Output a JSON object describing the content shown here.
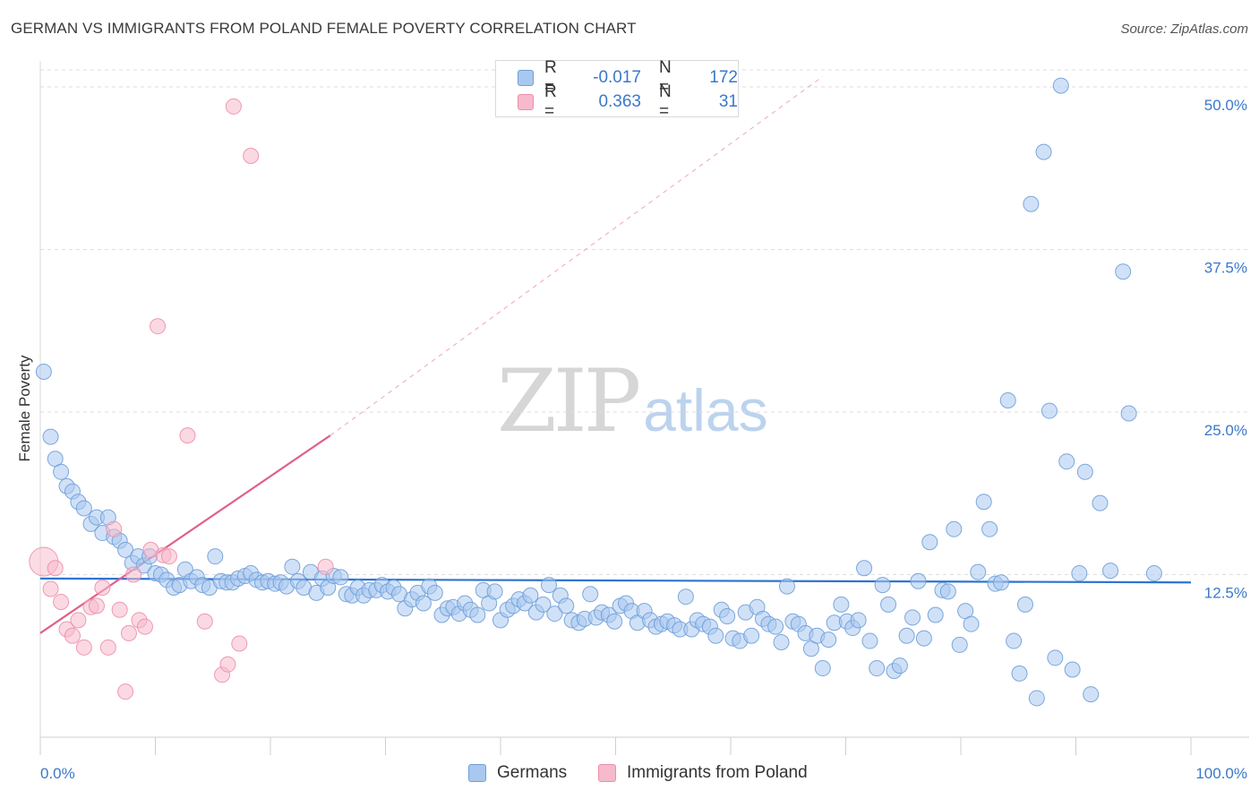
{
  "title": "GERMAN VS IMMIGRANTS FROM POLAND FEMALE POVERTY CORRELATION CHART",
  "source": "Source: ZipAtlas.com",
  "watermark": {
    "part1": "ZIP",
    "part2": "atlas"
  },
  "colors": {
    "blue_fill": "#a9c8f0",
    "blue_stroke": "#6f9fd8",
    "blue_line": "#2f74d0",
    "pink_fill": "#f7b9cc",
    "pink_stroke": "#ec8fab",
    "pink_line": "#e0608a",
    "grid": "#dedede",
    "axis_text": "#3a78c9"
  },
  "legend": [
    {
      "r_label": "R =",
      "r_value": "-0.017",
      "n_label": "N =",
      "n_value": "172"
    },
    {
      "r_label": "R =",
      "r_value": "0.363",
      "n_label": "N =",
      "n_value": "31"
    }
  ],
  "bottom_legend": [
    "Germans",
    "Immigrants from Poland"
  ],
  "chart_data": {
    "type": "scatter",
    "title": "GERMAN VS IMMIGRANTS FROM POLAND FEMALE POVERTY CORRELATION CHART",
    "xlabel": "",
    "ylabel": "Female Poverty",
    "xlim": [
      0,
      100
    ],
    "ylim": [
      0,
      52
    ],
    "x_tick_labels": [
      "0.0%",
      "100.0%"
    ],
    "y_ticks": [
      12.5,
      25.0,
      37.5,
      50.0
    ],
    "y_tick_labels": [
      "12.5%",
      "25.0%",
      "37.5%",
      "50.0%"
    ],
    "grid": true,
    "series": [
      {
        "name": "Germans",
        "color": "#a9c8f0",
        "trend": {
          "x": [
            0,
            100
          ],
          "y": [
            12.2,
            11.9
          ]
        },
        "points": [
          [
            0.3,
            28.1
          ],
          [
            0.9,
            23.1
          ],
          [
            1.3,
            21.4
          ],
          [
            1.8,
            20.4
          ],
          [
            2.3,
            19.3
          ],
          [
            2.8,
            18.9
          ],
          [
            3.3,
            18.1
          ],
          [
            3.8,
            17.6
          ],
          [
            4.4,
            16.4
          ],
          [
            4.9,
            16.9
          ],
          [
            5.4,
            15.7
          ],
          [
            5.9,
            16.9
          ],
          [
            6.4,
            15.4
          ],
          [
            6.9,
            15.1
          ],
          [
            7.4,
            14.4
          ],
          [
            8.0,
            13.4
          ],
          [
            8.5,
            13.9
          ],
          [
            9.0,
            13.2
          ],
          [
            9.5,
            13.9
          ],
          [
            10.0,
            12.6
          ],
          [
            10.5,
            12.5
          ],
          [
            11.0,
            12.1
          ],
          [
            11.6,
            11.5
          ],
          [
            12.1,
            11.7
          ],
          [
            12.6,
            12.9
          ],
          [
            13.1,
            12.0
          ],
          [
            13.6,
            12.3
          ],
          [
            14.1,
            11.7
          ],
          [
            14.7,
            11.5
          ],
          [
            15.2,
            13.9
          ],
          [
            15.7,
            12.0
          ],
          [
            16.2,
            11.9
          ],
          [
            16.7,
            11.9
          ],
          [
            17.2,
            12.2
          ],
          [
            17.8,
            12.4
          ],
          [
            18.3,
            12.6
          ],
          [
            18.8,
            12.1
          ],
          [
            19.3,
            11.9
          ],
          [
            19.8,
            12.0
          ],
          [
            20.4,
            11.8
          ],
          [
            20.9,
            11.9
          ],
          [
            21.4,
            11.6
          ],
          [
            21.9,
            13.1
          ],
          [
            22.4,
            12.0
          ],
          [
            22.9,
            11.5
          ],
          [
            23.5,
            12.7
          ],
          [
            24.0,
            11.1
          ],
          [
            24.5,
            12.2
          ],
          [
            25.0,
            11.5
          ],
          [
            25.5,
            12.4
          ],
          [
            26.1,
            12.3
          ],
          [
            26.6,
            11.0
          ],
          [
            27.1,
            10.9
          ],
          [
            27.6,
            11.5
          ],
          [
            28.1,
            10.9
          ],
          [
            28.6,
            11.3
          ],
          [
            29.2,
            11.3
          ],
          [
            29.7,
            11.7
          ],
          [
            30.2,
            11.2
          ],
          [
            30.7,
            11.5
          ],
          [
            31.2,
            11.0
          ],
          [
            31.7,
            9.9
          ],
          [
            32.3,
            10.6
          ],
          [
            32.8,
            11.1
          ],
          [
            33.3,
            10.3
          ],
          [
            33.8,
            11.6
          ],
          [
            34.3,
            11.1
          ],
          [
            34.9,
            9.4
          ],
          [
            35.4,
            9.9
          ],
          [
            35.9,
            10.0
          ],
          [
            36.4,
            9.5
          ],
          [
            36.9,
            10.3
          ],
          [
            37.4,
            9.8
          ],
          [
            38.0,
            9.4
          ],
          [
            38.5,
            11.3
          ],
          [
            39.0,
            10.3
          ],
          [
            39.5,
            11.2
          ],
          [
            40.0,
            9.0
          ],
          [
            40.6,
            9.8
          ],
          [
            41.1,
            10.1
          ],
          [
            41.6,
            10.6
          ],
          [
            42.1,
            10.3
          ],
          [
            42.6,
            10.9
          ],
          [
            43.1,
            9.6
          ],
          [
            43.7,
            10.2
          ],
          [
            44.2,
            11.7
          ],
          [
            44.7,
            9.5
          ],
          [
            45.2,
            10.9
          ],
          [
            45.7,
            10.1
          ],
          [
            46.2,
            9.0
          ],
          [
            46.8,
            8.8
          ],
          [
            47.3,
            9.1
          ],
          [
            47.8,
            11.0
          ],
          [
            48.3,
            9.2
          ],
          [
            48.8,
            9.6
          ],
          [
            49.4,
            9.4
          ],
          [
            49.9,
            8.9
          ],
          [
            50.4,
            10.1
          ],
          [
            50.9,
            10.3
          ],
          [
            51.4,
            9.7
          ],
          [
            51.9,
            8.8
          ],
          [
            52.5,
            9.7
          ],
          [
            53.0,
            9.0
          ],
          [
            53.5,
            8.5
          ],
          [
            54.0,
            8.7
          ],
          [
            54.5,
            8.9
          ],
          [
            55.1,
            8.6
          ],
          [
            55.6,
            8.3
          ],
          [
            56.1,
            10.8
          ],
          [
            56.6,
            8.3
          ],
          [
            57.1,
            9.0
          ],
          [
            57.6,
            8.7
          ],
          [
            58.2,
            8.5
          ],
          [
            58.7,
            7.8
          ],
          [
            59.2,
            9.8
          ],
          [
            59.7,
            9.3
          ],
          [
            60.2,
            7.6
          ],
          [
            60.8,
            7.4
          ],
          [
            61.3,
            9.6
          ],
          [
            61.8,
            7.8
          ],
          [
            62.3,
            10.0
          ],
          [
            62.8,
            9.1
          ],
          [
            63.3,
            8.7
          ],
          [
            63.9,
            8.5
          ],
          [
            64.4,
            7.3
          ],
          [
            64.9,
            11.6
          ],
          [
            65.4,
            8.9
          ],
          [
            65.9,
            8.7
          ],
          [
            66.5,
            8.0
          ],
          [
            67.0,
            6.8
          ],
          [
            67.5,
            7.8
          ],
          [
            68.0,
            5.3
          ],
          [
            68.5,
            7.5
          ],
          [
            69.0,
            8.8
          ],
          [
            69.6,
            10.2
          ],
          [
            70.1,
            8.9
          ],
          [
            70.6,
            8.4
          ],
          [
            71.1,
            9.0
          ],
          [
            71.6,
            13.0
          ],
          [
            72.1,
            7.4
          ],
          [
            72.7,
            5.3
          ],
          [
            73.2,
            11.7
          ],
          [
            73.7,
            10.2
          ],
          [
            74.2,
            5.1
          ],
          [
            74.7,
            5.5
          ],
          [
            75.3,
            7.8
          ],
          [
            75.8,
            9.2
          ],
          [
            76.3,
            12.0
          ],
          [
            76.8,
            7.6
          ],
          [
            77.3,
            15.0
          ],
          [
            77.8,
            9.4
          ],
          [
            78.4,
            11.3
          ],
          [
            78.9,
            11.2
          ],
          [
            79.4,
            16.0
          ],
          [
            79.9,
            7.1
          ],
          [
            80.4,
            9.7
          ],
          [
            80.9,
            8.7
          ],
          [
            81.5,
            12.7
          ],
          [
            82.0,
            18.1
          ],
          [
            82.5,
            16.0
          ],
          [
            83.0,
            11.8
          ],
          [
            83.5,
            11.9
          ],
          [
            84.1,
            25.9
          ],
          [
            84.6,
            7.4
          ],
          [
            85.1,
            4.9
          ],
          [
            85.6,
            10.2
          ],
          [
            86.1,
            41.0
          ],
          [
            86.6,
            3.0
          ],
          [
            87.2,
            45.0
          ],
          [
            87.7,
            25.1
          ],
          [
            88.2,
            6.1
          ],
          [
            88.7,
            50.1
          ],
          [
            89.2,
            21.2
          ],
          [
            89.7,
            5.2
          ],
          [
            90.3,
            12.6
          ],
          [
            90.8,
            20.4
          ],
          [
            91.3,
            3.3
          ],
          [
            94.1,
            35.8
          ],
          [
            94.6,
            24.9
          ],
          [
            92.1,
            18.0
          ],
          [
            93.0,
            12.8
          ],
          [
            96.8,
            12.6
          ]
        ]
      },
      {
        "name": "Immigrants from Poland",
        "color": "#f7b9cc",
        "trend": {
          "x": [
            0,
            25.2
          ],
          "y": [
            8.0,
            23.2
          ]
        },
        "trend_dashed": {
          "x": [
            25.2,
            68.0
          ],
          "y": [
            23.2,
            50.8
          ]
        },
        "points": [
          [
            0.3,
            13.5
          ],
          [
            0.9,
            11.4
          ],
          [
            1.3,
            13.0
          ],
          [
            1.8,
            10.4
          ],
          [
            2.3,
            8.3
          ],
          [
            2.8,
            7.8
          ],
          [
            3.3,
            9.0
          ],
          [
            3.8,
            6.9
          ],
          [
            4.4,
            10.0
          ],
          [
            4.9,
            10.1
          ],
          [
            5.4,
            11.5
          ],
          [
            5.9,
            6.9
          ],
          [
            6.4,
            16.0
          ],
          [
            6.9,
            9.8
          ],
          [
            7.4,
            3.5
          ],
          [
            7.7,
            8.0
          ],
          [
            8.1,
            12.5
          ],
          [
            8.6,
            9.0
          ],
          [
            9.1,
            8.5
          ],
          [
            9.6,
            14.4
          ],
          [
            10.2,
            31.6
          ],
          [
            10.7,
            14.0
          ],
          [
            11.2,
            13.9
          ],
          [
            12.8,
            23.2
          ],
          [
            14.3,
            8.9
          ],
          [
            15.8,
            4.8
          ],
          [
            16.3,
            5.6
          ],
          [
            16.8,
            48.5
          ],
          [
            17.3,
            7.2
          ],
          [
            18.3,
            44.7
          ],
          [
            24.8,
            13.1
          ]
        ]
      }
    ]
  }
}
